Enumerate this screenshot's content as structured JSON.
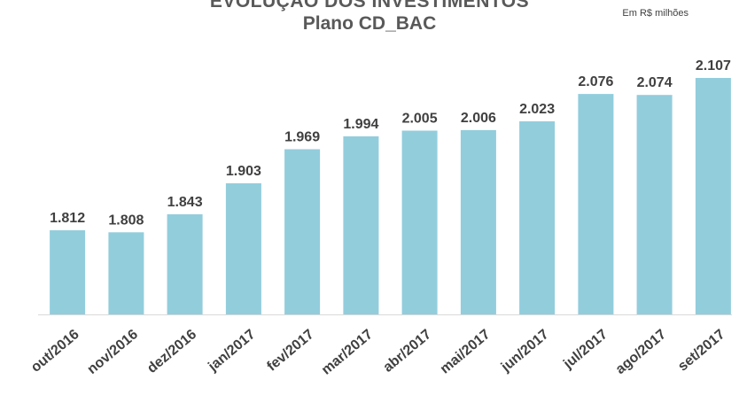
{
  "chart_data": {
    "type": "bar",
    "title": "EVOLUÇÃO DOS INVESTIMENTOS",
    "subtitle": "Plano CD_BAC",
    "unit_note": "Em R$ milhões",
    "categories": [
      "out/2016",
      "nov/2016",
      "dez/2016",
      "jan/2017",
      "fev/2017",
      "mar/2017",
      "abr/2017",
      "mai/2017",
      "jun/2017",
      "jul/2017",
      "ago/2017",
      "set/2017"
    ],
    "values": [
      1812,
      1808,
      1843,
      1903,
      1969,
      1994,
      2005,
      2006,
      2023,
      2076,
      2074,
      2107
    ],
    "value_labels": [
      "1.812",
      "1.808",
      "1.843",
      "1.903",
      "1.969",
      "1.994",
      "2.005",
      "2.006",
      "2.023",
      "2.076",
      "2.074",
      "2.107"
    ],
    "bar_color": "#92CDDC",
    "label_color": "#404040",
    "xlabel": "",
    "ylabel": "",
    "grid": false
  }
}
